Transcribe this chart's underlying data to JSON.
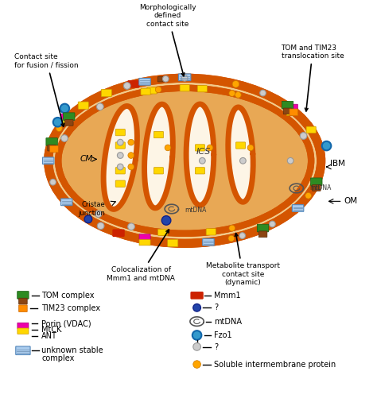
{
  "fig_width": 4.74,
  "fig_height": 5.11,
  "dpi": 100,
  "bg_color": "#ffffff",
  "mito_outer_color": "#d45500",
  "mito_inner_color": "#d45500",
  "mito_bg_color": "#f2c98a",
  "mito_matrix_color": "#e8a855",
  "crista_lumen_color": "#fdf5e6",
  "labels": {
    "top_center": "Morphologically\ndefined\ncontact site",
    "top_left": "Contact site\nfor fusion / fission",
    "top_right": "TOM and TIM23\ntranslocation site",
    "CM": "CM",
    "ICS": "ICS",
    "IBM": "IBM",
    "OM": "OM",
    "cristae_junction": "Cristae\njunction",
    "coloc": "Colocalization of\nMmm1 and mtDNA",
    "metabolite": "Metabolite transport\ncontact site\n(dynamic)"
  }
}
